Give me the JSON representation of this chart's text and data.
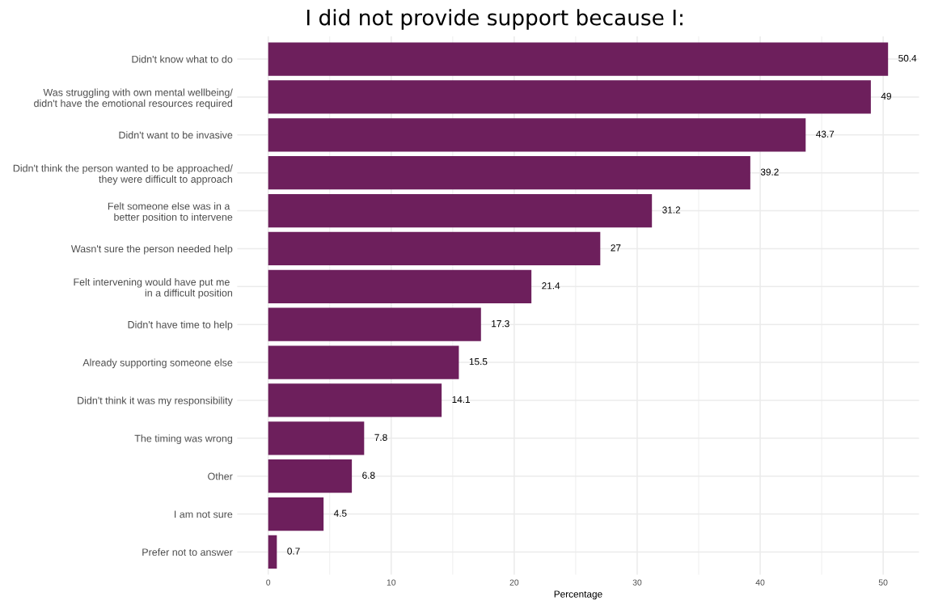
{
  "chart_data": {
    "type": "bar",
    "orientation": "horizontal",
    "title": "I did not provide support because I:",
    "xlabel": "Percentage",
    "categories": [
      "Didn't know what to do",
      "Was struggling with own mental wellbeing/\ndidn't have the emotional resources required",
      "Didn't want to be invasive",
      "Didn't think the person wanted to be approached/\nthey were difficult to approach",
      "Felt someone else was in a \nbetter position to intervene",
      "Wasn't sure the person needed help",
      "Felt intervening would have put me \nin a difficult position",
      "Didn't have time to help",
      "Already supporting someone else",
      "Didn't think it was my responsibility",
      "The timing was wrong",
      "Other",
      "I am not sure",
      "Prefer not to answer"
    ],
    "values": [
      50.4,
      49,
      43.7,
      39.2,
      31.2,
      27,
      21.4,
      17.3,
      15.5,
      14.1,
      7.8,
      6.8,
      4.5,
      0.7
    ],
    "color": "#6d1f5c",
    "xlim": [
      -2.52,
      52.92
    ],
    "xticks": [
      0,
      10,
      20,
      30,
      40,
      50
    ],
    "grid": true,
    "data_labels": true
  }
}
